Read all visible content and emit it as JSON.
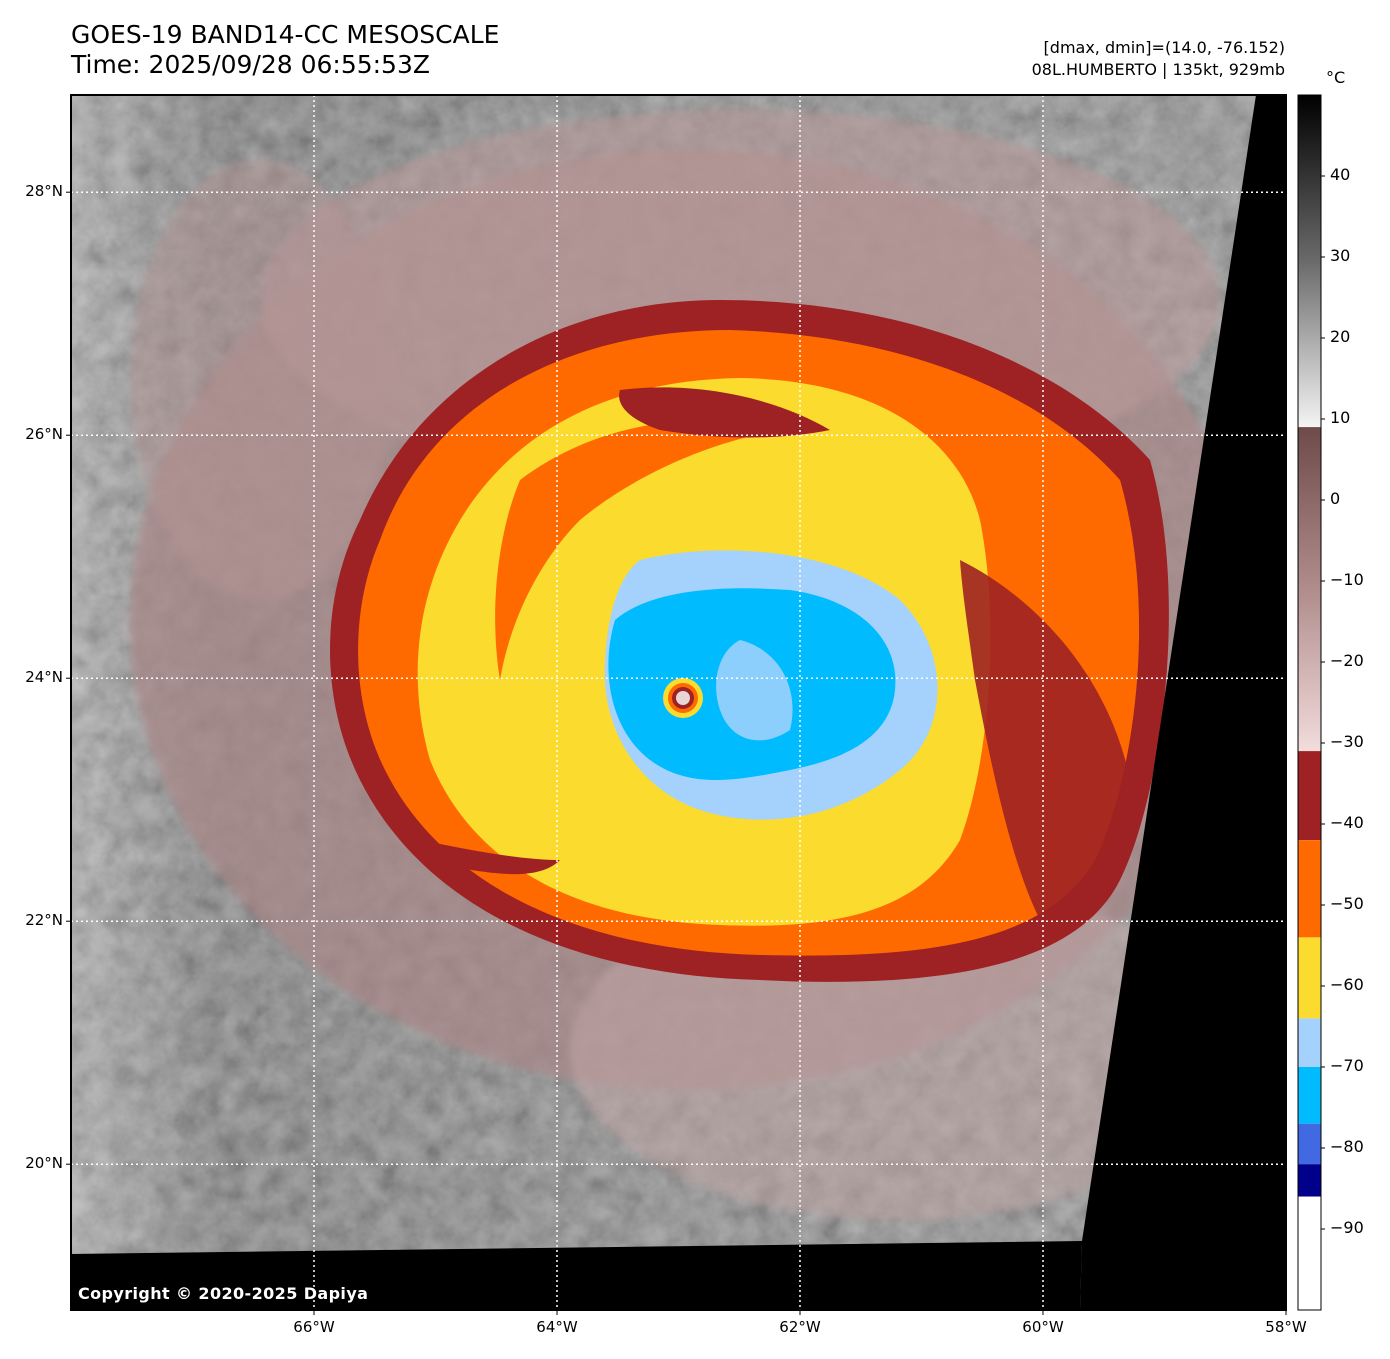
{
  "title": {
    "line1": "GOES-19 BAND14-CC MESOSCALE",
    "line2": "Time: 2025/09/28 06:55:53Z"
  },
  "info": {
    "line1": "[dmax, dmin]=(14.0, -76.152)",
    "line2": "08L.HUMBERTO | 135kt, 929mb"
  },
  "storm": {
    "id": "08L",
    "name": "HUMBERTO",
    "intensity_kt": 135,
    "pressure_mb": 929,
    "eye": {
      "lon": -63.0,
      "lat": 23.85
    }
  },
  "extent": {
    "lon_min": -68.0,
    "lon_max": -58.0,
    "lat_min": 18.8,
    "lat_max": 28.8
  },
  "map": {
    "lat_lines": [
      {
        "value": 28,
        "label": "28°N"
      },
      {
        "value": 26,
        "label": "26°N"
      },
      {
        "value": 24,
        "label": "24°N"
      },
      {
        "value": 22,
        "label": "22°N"
      },
      {
        "value": 20,
        "label": "20°N"
      }
    ],
    "lon_lines": [
      {
        "value": -66,
        "label": "66°W"
      },
      {
        "value": -64,
        "label": "64°W"
      },
      {
        "value": -62,
        "label": "62°W"
      },
      {
        "value": -60,
        "label": "60°W"
      },
      {
        "value": -58,
        "label": "58°W"
      }
    ]
  },
  "colorbar": {
    "unit": "°C",
    "range": [
      -100,
      50
    ],
    "ticks": [
      {
        "value": 40,
        "label": "40"
      },
      {
        "value": 30,
        "label": "30"
      },
      {
        "value": 20,
        "label": "20"
      },
      {
        "value": 10,
        "label": "10"
      },
      {
        "value": 0,
        "label": "0"
      },
      {
        "value": -10,
        "label": "−10"
      },
      {
        "value": -20,
        "label": "−20"
      },
      {
        "value": -30,
        "label": "−30"
      },
      {
        "value": -40,
        "label": "−40"
      },
      {
        "value": -50,
        "label": "−50"
      },
      {
        "value": -60,
        "label": "−60"
      },
      {
        "value": -70,
        "label": "−70"
      },
      {
        "value": -80,
        "label": "−80"
      },
      {
        "value": -90,
        "label": "−90"
      }
    ],
    "bands": [
      {
        "from": 9,
        "to": 50,
        "colors": [
          "#f4f4f4",
          "#6a6a6a",
          "#000000"
        ]
      },
      {
        "from": -31,
        "to": 9,
        "colors": [
          "#f2dcdc",
          "#b08c8c",
          "#6e4a4a"
        ]
      },
      {
        "from": -42,
        "to": -31,
        "color": "#9e2224"
      },
      {
        "from": -54,
        "to": -42,
        "color": "#ff6a00"
      },
      {
        "from": -64,
        "to": -54,
        "color": "#fadb2e"
      },
      {
        "from": -70,
        "to": -64,
        "color": "#a4d2fd"
      },
      {
        "from": -77,
        "to": -70,
        "color": "#00bcff"
      },
      {
        "from": -82,
        "to": -77,
        "color": "#4169e1"
      },
      {
        "from": -86,
        "to": -82,
        "color": "#00008b"
      },
      {
        "from": -100,
        "to": -86,
        "color": "#ffffff"
      }
    ]
  },
  "copyright": "Copyright © 2020-2025 Dapiya"
}
